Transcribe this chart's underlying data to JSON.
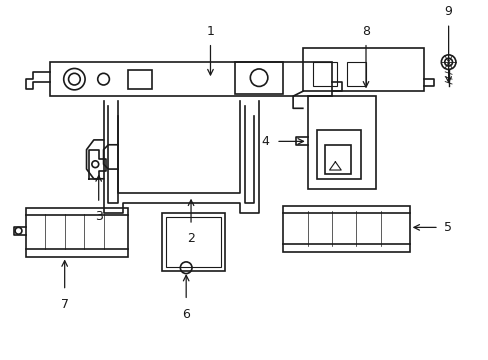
{
  "background_color": "#ffffff",
  "line_color": "#1a1a1a",
  "line_width": 1.2,
  "title": "",
  "figsize": [
    4.89,
    3.6
  ],
  "dpi": 100,
  "parts": {
    "part1_label": "1",
    "part2_label": "2",
    "part3_label": "3",
    "part4_label": "4",
    "part5_label": "5",
    "part6_label": "6",
    "part7_label": "7",
    "part8_label": "8",
    "part9_label": "9"
  },
  "label_fontsize": 9,
  "arrow_color": "#1a1a1a"
}
